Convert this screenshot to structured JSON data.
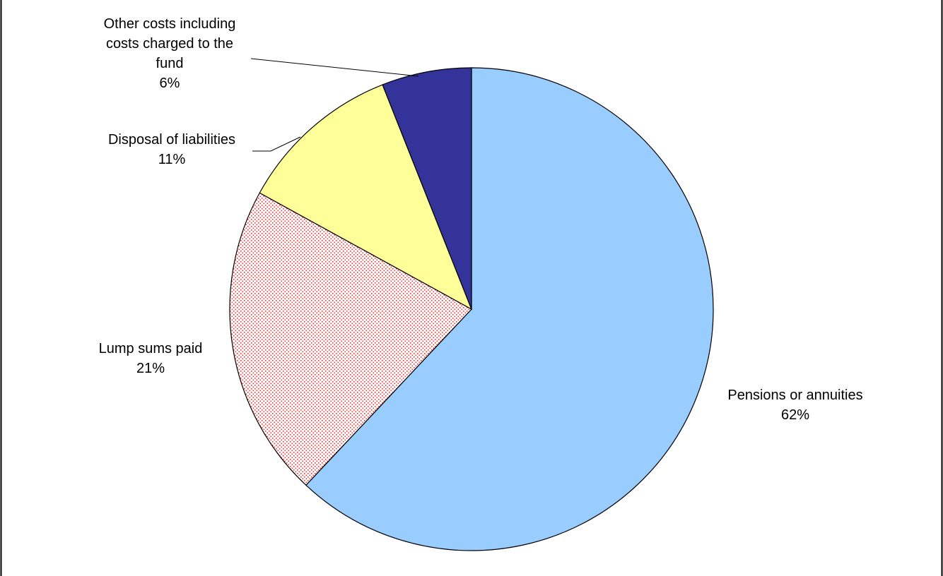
{
  "chart_data": {
    "type": "pie",
    "title": "",
    "start_angle_deg": 0,
    "direction": "clockwise",
    "legend": "none",
    "slices": [
      {
        "name": "Pensions or annuities",
        "value": 62,
        "label_lines": [
          "Pensions or annuities",
          "62%"
        ],
        "color": "#99CCFF",
        "pattern": "solid"
      },
      {
        "name": "Lump sums paid",
        "value": 21,
        "label_lines": [
          "Lump sums paid",
          "21%"
        ],
        "color": "#FF0000",
        "pattern": "dotted"
      },
      {
        "name": "Disposal of liabilities",
        "value": 11,
        "label_lines": [
          "Disposal of liabilities",
          "11%"
        ],
        "color": "#FFFF99",
        "pattern": "solid"
      },
      {
        "name": "Other costs including costs charged to the fund",
        "value": 6,
        "label_lines": [
          "Other costs including",
          "costs charged to the",
          "fund",
          "6%"
        ],
        "color": "#333399",
        "pattern": "solid"
      }
    ]
  }
}
